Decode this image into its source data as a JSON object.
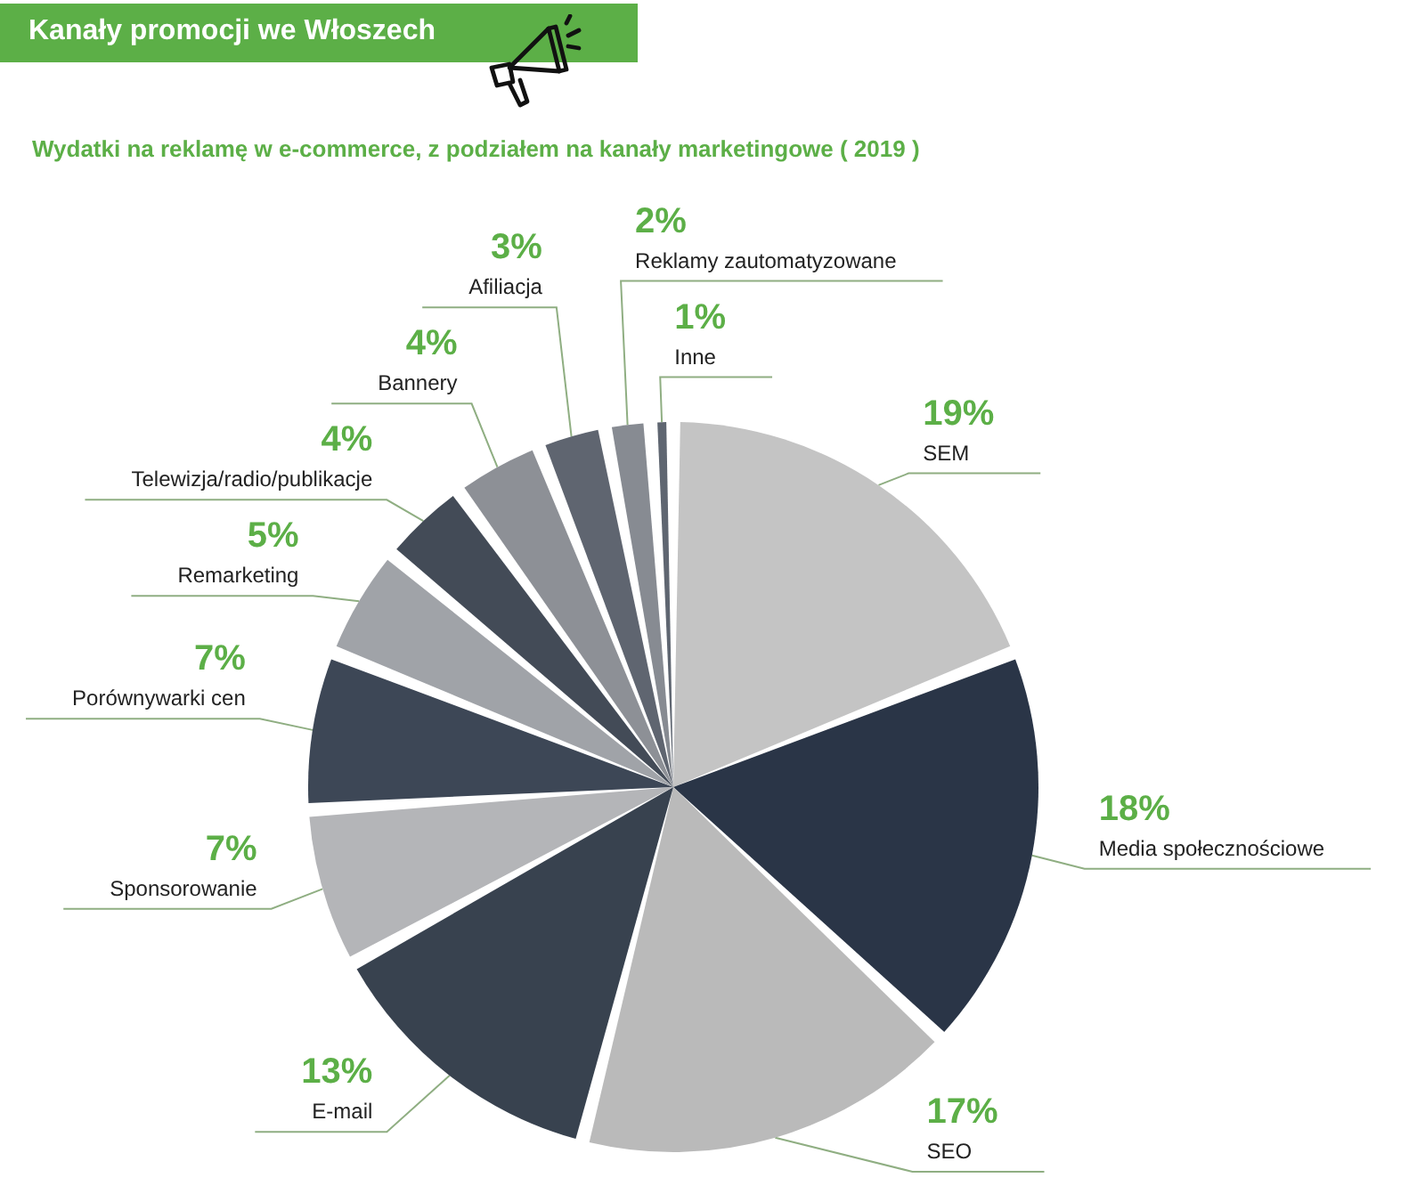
{
  "chart_data": {
    "type": "pie",
    "title": "Kanały promocji we Włoszech",
    "subtitle": "Wydatki na reklamę w e-commerce, z podziałem na kanały marketingowe ( 2019 )",
    "categories": [
      "SEM",
      "Media społecznościowe",
      "SEO",
      "E-mail",
      "Sponsorowanie",
      "Porównywarki cen",
      "Remarketing",
      "Telewizja/radio/publikacje",
      "Bannery",
      "Afiliacja",
      "Reklamy zautomatyzowane",
      "Inne"
    ],
    "values": [
      19,
      18,
      17,
      13,
      7,
      7,
      5,
      4,
      4,
      3,
      2,
      1
    ],
    "colors": [
      "#c4c4c4",
      "#2a3547",
      "#bababa",
      "#38424f",
      "#b4b5b8",
      "#3d4756",
      "#a0a3a8",
      "#434b57",
      "#8d9096",
      "#5f6570",
      "#878b92",
      "#5f6671"
    ],
    "value_labels": [
      "19%",
      "18%",
      "17%",
      "13%",
      "7%",
      "7%",
      "5%",
      "4%",
      "4%",
      "3%",
      "2%",
      "1%"
    ]
  }
}
